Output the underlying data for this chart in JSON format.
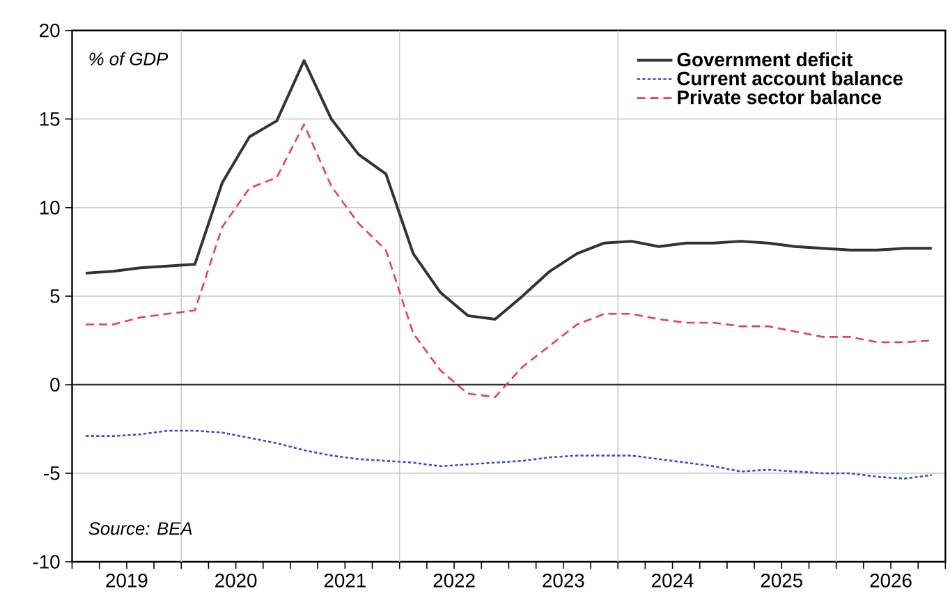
{
  "chart_data": {
    "type": "line",
    "x": [
      2019.125,
      2019.375,
      2019.625,
      2019.875,
      2020.125,
      2020.375,
      2020.625,
      2020.875,
      2021.125,
      2021.375,
      2021.625,
      2021.875,
      2022.125,
      2022.375,
      2022.625,
      2022.875,
      2023.125,
      2023.375,
      2023.625,
      2023.875,
      2024.125,
      2024.375,
      2024.625,
      2024.875,
      2025.125,
      2025.375,
      2025.625,
      2025.875,
      2026.125,
      2026.375,
      2026.625,
      2026.875
    ],
    "series": [
      {
        "name": "Government deficit",
        "color": "#333333",
        "line_style": "solid",
        "values": [
          6.3,
          6.4,
          6.6,
          6.7,
          6.8,
          11.4,
          14.0,
          14.9,
          18.3,
          15.0,
          13.0,
          11.9,
          7.4,
          5.2,
          3.9,
          3.7,
          5.0,
          6.4,
          7.4,
          8.0,
          8.1,
          7.8,
          8.0,
          8.0,
          8.1,
          8.0,
          7.8,
          7.7,
          7.6,
          7.6,
          7.7,
          7.7
        ]
      },
      {
        "name": "Current account balance",
        "color": "#4646d2",
        "line_style": "dotted",
        "values": [
          -2.9,
          -2.9,
          -2.8,
          -2.6,
          -2.6,
          -2.7,
          -3.0,
          -3.3,
          -3.7,
          -4.0,
          -4.2,
          -4.3,
          -4.4,
          -4.6,
          -4.5,
          -4.4,
          -4.3,
          -4.1,
          -4.0,
          -4.0,
          -4.0,
          -4.2,
          -4.4,
          -4.6,
          -4.9,
          -4.8,
          -4.9,
          -5.0,
          -5.0,
          -5.2,
          -5.3,
          -5.1
        ]
      },
      {
        "name": "Private sector balance",
        "color": "#e8404a",
        "line_style": "dashed",
        "values": [
          3.4,
          3.4,
          3.8,
          4.0,
          4.2,
          8.9,
          11.1,
          11.7,
          14.7,
          11.2,
          9.1,
          7.6,
          2.9,
          0.8,
          -0.5,
          -0.7,
          1.0,
          2.2,
          3.4,
          4.0,
          4.0,
          3.7,
          3.5,
          3.5,
          3.3,
          3.3,
          3.0,
          2.7,
          2.7,
          2.4,
          2.4,
          2.5
        ]
      }
    ],
    "xlim": [
      2019,
      2027
    ],
    "xticks": [
      {
        "value": 2019,
        "label": null
      },
      {
        "value": 2019.25,
        "label": null
      },
      {
        "value": 2019.5,
        "label": "2019"
      },
      {
        "value": 2019.75,
        "label": null
      },
      {
        "value": 2020,
        "label": null
      },
      {
        "value": 2020.25,
        "label": null
      },
      {
        "value": 2020.5,
        "label": "2020"
      },
      {
        "value": 2020.75,
        "label": null
      },
      {
        "value": 2021,
        "label": null
      },
      {
        "value": 2021.25,
        "label": null
      },
      {
        "value": 2021.5,
        "label": "2021"
      },
      {
        "value": 2021.75,
        "label": null
      },
      {
        "value": 2022,
        "label": null
      },
      {
        "value": 2022.25,
        "label": null
      },
      {
        "value": 2022.5,
        "label": "2022"
      },
      {
        "value": 2022.75,
        "label": null
      },
      {
        "value": 2023,
        "label": null
      },
      {
        "value": 2023.25,
        "label": null
      },
      {
        "value": 2023.5,
        "label": "2023"
      },
      {
        "value": 2023.75,
        "label": null
      },
      {
        "value": 2024,
        "label": null
      },
      {
        "value": 2024.25,
        "label": null
      },
      {
        "value": 2024.5,
        "label": "2024"
      },
      {
        "value": 2024.75,
        "label": null
      },
      {
        "value": 2025,
        "label": null
      },
      {
        "value": 2025.25,
        "label": null
      },
      {
        "value": 2025.5,
        "label": "2025"
      },
      {
        "value": 2025.75,
        "label": null
      },
      {
        "value": 2026,
        "label": null
      },
      {
        "value": 2026.25,
        "label": null
      },
      {
        "value": 2026.5,
        "label": "2026"
      },
      {
        "value": 2026.75,
        "label": null
      },
      {
        "value": 2027,
        "label": null
      }
    ],
    "ylim": [
      -10,
      20
    ],
    "yticks": [
      -10,
      -5,
      0,
      5,
      10,
      15,
      20
    ],
    "ref_lines": [
      {
        "axis": "y",
        "value": 0,
        "color": "#333333"
      }
    ],
    "grid": true,
    "legend": "top right",
    "marker": "none",
    "annotations": [
      "% of GDP",
      "Source: BEA"
    ]
  }
}
